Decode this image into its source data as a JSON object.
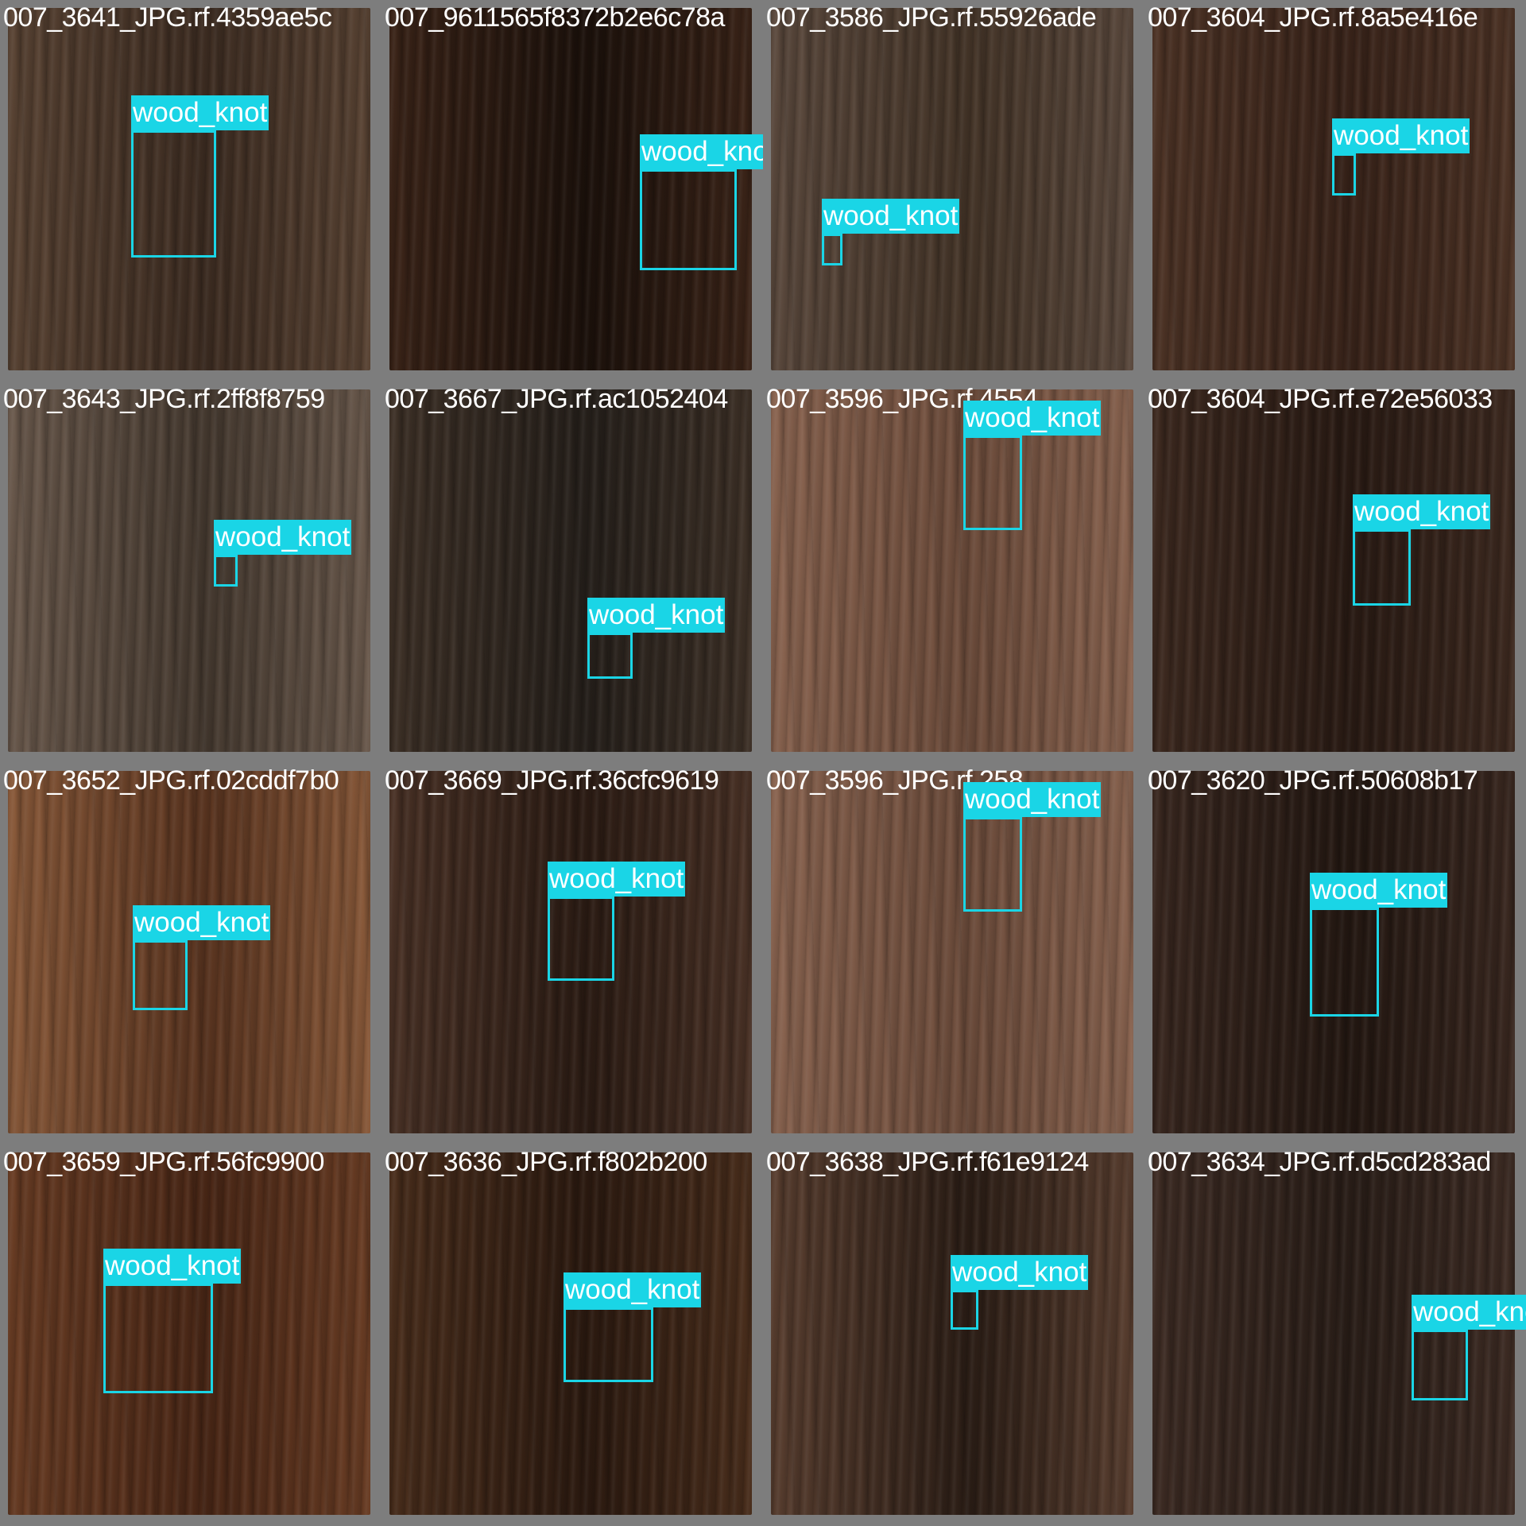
{
  "label_color": "#1ad5e6",
  "tiles": [
    {
      "filename": "007_3641_JPG.rf.4359ae5c",
      "bg": [
        "#5a4434",
        "#3e2d22"
      ],
      "boxes": [
        {
          "label": "wood_knot"
        }
      ]
    },
    {
      "filename": "007_9611565f8372b2e6c78a",
      "bg": [
        "#3b2418",
        "#1c110b"
      ],
      "boxes": [
        {
          "label": "wood_knot"
        }
      ]
    },
    {
      "filename": "007_3586_JPG.rf.55926ade",
      "bg": [
        "#5c4a3e",
        "#453528"
      ],
      "boxes": [
        {
          "label": "wood_knot"
        }
      ]
    },
    {
      "filename": "007_3604_JPG.rf.8a5e416e",
      "bg": [
        "#4e3426",
        "#3a241a"
      ],
      "boxes": [
        {
          "label": "wood_knot"
        }
      ]
    },
    {
      "filename": "007_3643_JPG.rf.2ff8f8759",
      "bg": [
        "#6b5a4d",
        "#463a30"
      ],
      "boxes": [
        {
          "label": "wood_knot"
        }
      ]
    },
    {
      "filename": "007_3667_JPG.rf.ac1052404",
      "bg": [
        "#3e3127",
        "#26201b"
      ],
      "boxes": [
        {
          "label": "wood_knot"
        }
      ]
    },
    {
      "filename": "007_3596_JPG.rf.4554",
      "bg": [
        "#8a6450",
        "#6e4d3c"
      ],
      "boxes": [
        {
          "label": "wood_knot"
        }
      ]
    },
    {
      "filename": "007_3604_JPG.rf.e72e56033",
      "bg": [
        "#3e2a20",
        "#2a1b14"
      ],
      "boxes": [
        {
          "label": "wood_knot"
        }
      ]
    },
    {
      "filename": "007_3652_JPG.rf.02cddf7b0",
      "bg": [
        "#8a5a3a",
        "#5b3520"
      ],
      "boxes": [
        {
          "label": "wood_knot"
        }
      ]
    },
    {
      "filename": "007_3669_JPG.rf.36cfc9619",
      "bg": [
        "#4a3226",
        "#2c1c14"
      ],
      "boxes": [
        {
          "label": "wood_knot"
        }
      ]
    },
    {
      "filename": "007_3596_JPG.rf.258",
      "bg": [
        "#8a6450",
        "#6e4d3c"
      ],
      "boxes": [
        {
          "label": "wood_knot"
        }
      ]
    },
    {
      "filename": "007_3620_JPG.rf.50608b17",
      "bg": [
        "#3a2820",
        "#241812"
      ],
      "boxes": [
        {
          "label": "wood_knot"
        }
      ]
    },
    {
      "filename": "007_3659_JPG.rf.56fc9900",
      "bg": [
        "#6a3d24",
        "#4a2716"
      ],
      "boxes": [
        {
          "label": "wood_knot"
        }
      ]
    },
    {
      "filename": "007_3636_JPG.rf.f802b200",
      "bg": [
        "#4a2e1c",
        "#2c1a10"
      ],
      "boxes": [
        {
          "label": "wood_knot"
        }
      ]
    },
    {
      "filename": "007_3638_JPG.rf.f61e9124",
      "bg": [
        "#5a3f30",
        "#2c1e16"
      ],
      "boxes": [
        {
          "label": "wood_knot"
        }
      ]
    },
    {
      "filename": "007_3634_JPG.rf.d5cd283ad",
      "bg": [
        "#3e2c24",
        "#2a1e18"
      ],
      "boxes": [
        {
          "label": "wood_knot"
        }
      ]
    }
  ]
}
